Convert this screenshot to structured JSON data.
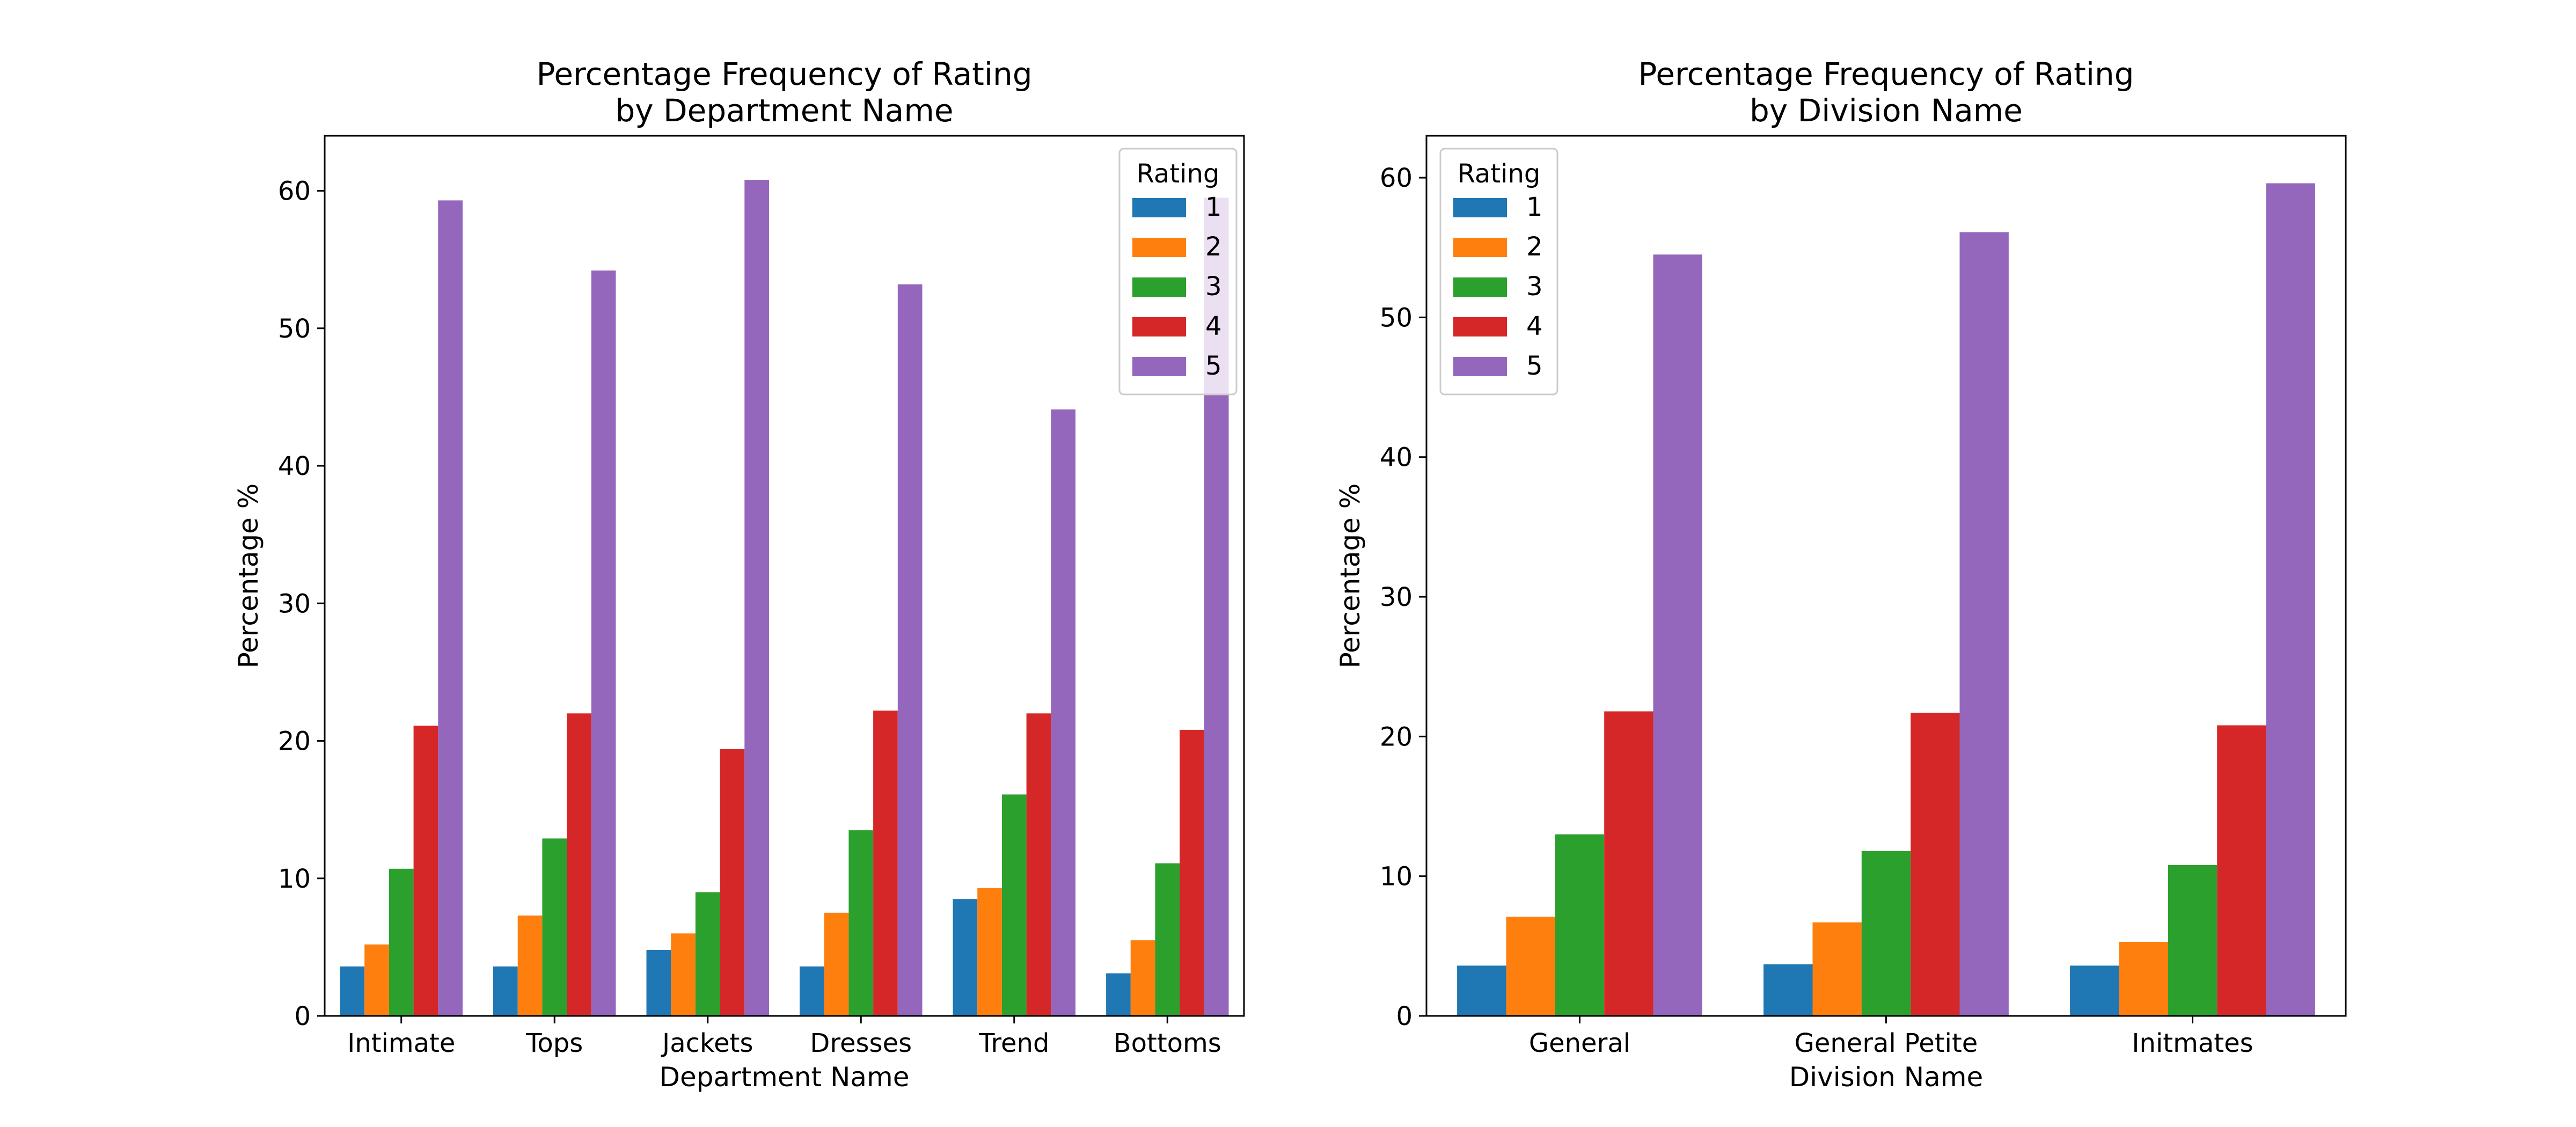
{
  "chart_data": [
    {
      "type": "bar",
      "title": "Percentage Frequency of Rating\nby Department Name",
      "xlabel": "Department Name",
      "ylabel": "Percentage %",
      "ylim": [
        0,
        64
      ],
      "yticks": [
        0,
        10,
        20,
        30,
        40,
        50,
        60
      ],
      "categories": [
        "Intimate",
        "Tops",
        "Jackets",
        "Dresses",
        "Trend",
        "Bottoms"
      ],
      "legend": {
        "title": "Rating",
        "placement": "top-right"
      },
      "series": [
        {
          "name": "1",
          "color": "#1f77b4",
          "values": [
            3.6,
            3.6,
            4.8,
            3.6,
            8.5,
            3.1
          ]
        },
        {
          "name": "2",
          "color": "#ff7f0e",
          "values": [
            5.2,
            7.3,
            6.0,
            7.5,
            9.3,
            5.5
          ]
        },
        {
          "name": "3",
          "color": "#2ca02c",
          "values": [
            10.7,
            12.9,
            9.0,
            13.5,
            16.1,
            11.1
          ]
        },
        {
          "name": "4",
          "color": "#d62728",
          "values": [
            21.1,
            22.0,
            19.4,
            22.2,
            22.0,
            20.8
          ]
        },
        {
          "name": "5",
          "color": "#9467bd",
          "values": [
            59.3,
            54.2,
            60.8,
            53.2,
            44.1,
            59.5
          ]
        }
      ],
      "grid": false
    },
    {
      "type": "bar",
      "title": "Percentage Frequency of Rating\nby Division Name",
      "xlabel": "Division Name",
      "ylabel": "Percentage %",
      "ylim": [
        0,
        63
      ],
      "yticks": [
        0,
        10,
        20,
        30,
        40,
        50,
        60
      ],
      "categories": [
        "General",
        "General Petite",
        "Initmates"
      ],
      "legend": {
        "title": "Rating",
        "placement": "top-left"
      },
      "series": [
        {
          "name": "1",
          "color": "#1f77b4",
          "values": [
            3.6,
            3.7,
            3.6
          ]
        },
        {
          "name": "2",
          "color": "#ff7f0e",
          "values": [
            7.1,
            6.7,
            5.3
          ]
        },
        {
          "name": "3",
          "color": "#2ca02c",
          "values": [
            13.0,
            11.8,
            10.8
          ]
        },
        {
          "name": "4",
          "color": "#d62728",
          "values": [
            21.8,
            21.7,
            20.8
          ]
        },
        {
          "name": "5",
          "color": "#9467bd",
          "values": [
            54.5,
            56.1,
            59.6
          ]
        }
      ],
      "grid": false
    }
  ]
}
